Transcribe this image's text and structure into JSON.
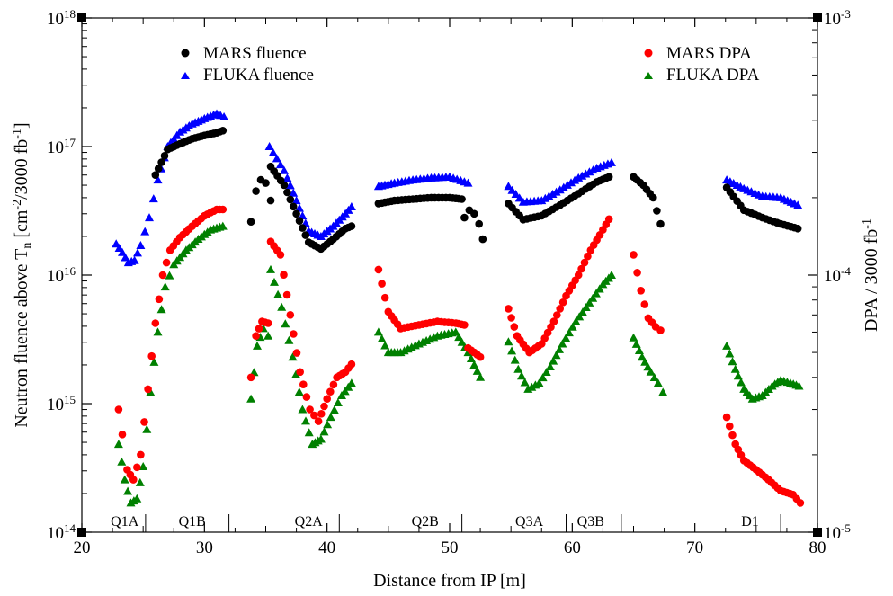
{
  "chart_data": {
    "type": "scatter",
    "xlabel": "Distance from IP [m]",
    "ylabel_left": "Neutron fluence above T_n [cm^-2/3000 fb^-1]",
    "ylabel_left_parts": {
      "main": "Neutron fluence above T",
      "sub": "n",
      "mid": " [cm",
      "sup1": "-2",
      "mid2": "/3000 fb",
      "sup2": "-1",
      "end": "]"
    },
    "ylabel_right": "DPA / 3000 fb^-1",
    "ylabel_right_parts": {
      "main": "DPA / 3000 fb",
      "sup": "-1"
    },
    "xlim": [
      20,
      80
    ],
    "ylim_left": [
      100000000000000.0,
      1e+18
    ],
    "ylim_right": [
      1e-05,
      0.001
    ],
    "yscale": "log",
    "grid": false,
    "xticks": [
      "20",
      "30",
      "40",
      "50",
      "60",
      "70",
      "80"
    ],
    "yticks_left": [
      {
        "base": "10",
        "exp": "14"
      },
      {
        "base": "10",
        "exp": "15"
      },
      {
        "base": "10",
        "exp": "16"
      },
      {
        "base": "10",
        "exp": "17"
      },
      {
        "base": "10",
        "exp": "18"
      }
    ],
    "yticks_right": [
      {
        "base": "10",
        "exp": "-5"
      },
      {
        "base": "10",
        "exp": "-4"
      },
      {
        "base": "10",
        "exp": "-3"
      }
    ],
    "legend_left": {
      "placement": "top-left",
      "entries": [
        "MARS fluence",
        "FLUKA fluence"
      ]
    },
    "legend_right": {
      "placement": "top-right",
      "entries": [
        "MARS DPA",
        "FLUKA DPA"
      ]
    },
    "magnet_labels": [
      {
        "label": "Q1A",
        "x": 23.5
      },
      {
        "label": "Q1B",
        "x": 29.0
      },
      {
        "label": "Q2A",
        "x": 38.5
      },
      {
        "label": "Q2B",
        "x": 48.0
      },
      {
        "label": "Q3A",
        "x": 56.5
      },
      {
        "label": "Q3B",
        "x": 61.5
      },
      {
        "label": "D1",
        "x": 74.5
      }
    ],
    "magnet_boundaries": [
      25.2,
      32.0,
      41.0,
      51.0,
      59.5,
      64.0,
      77.0
    ],
    "series": [
      {
        "name": "MARS fluence",
        "axis": "left",
        "marker": "circle",
        "color": "#000000",
        "segments": [
          {
            "x": [
              33.8,
              34.2,
              34.6,
              35.0,
              35.4
            ],
            "y": [
              2.6e+16,
              4.5e+16,
              5.5e+16,
              5.2e+16,
              3.8e+16
            ]
          },
          {
            "x": [
              35.4,
              36.5,
              37.5,
              38.5,
              39.5,
              40.5,
              41.5,
              42.0
            ],
            "y": [
              7e+16,
              5e+16,
              3e+16,
              1.8e+16,
              1.6e+16,
              1.9e+16,
              2.3e+16,
              2.4e+16
            ]
          },
          {
            "x": [
              44.2,
              45.5,
              47.0,
              48.5,
              50.0,
              51.0
            ],
            "y": [
              3.6e+16,
              3.8e+16,
              3.9e+16,
              4e+16,
              4e+16,
              3.9e+16
            ]
          },
          {
            "x": [
              51.2,
              51.6,
              52.0,
              52.4,
              52.7
            ],
            "y": [
              2.8e+16,
              3.2e+16,
              3e+16,
              2.5e+16,
              1.9e+16
            ]
          },
          {
            "x": [
              54.8,
              56.0,
              57.5,
              59.0,
              60.5,
              62.0,
              63.0
            ],
            "y": [
              3.6e+16,
              2.7e+16,
              2.9e+16,
              3.5e+16,
              4.3e+16,
              5.3e+16,
              5.8e+16
            ]
          },
          {
            "x": [
              65.0,
              65.8,
              66.6,
              67.2
            ],
            "y": [
              5.8e+16,
              5e+16,
              4e+16,
              2.5e+16
            ]
          },
          {
            "x": [
              72.6,
              74.0,
              75.5,
              77.0,
              78.4
            ],
            "y": [
              4.8e+16,
              3.2e+16,
              2.8e+16,
              2.5e+16,
              2.3e+16
            ]
          },
          {
            "x": [
              26.0,
              27.0,
              28.0,
              29.0,
              30.0,
              31.0,
              31.5
            ],
            "y": [
              6e+16,
              9.5e+16,
              1.05e+17,
              1.15e+17,
              1.22e+17,
              1.28e+17,
              1.33e+17
            ]
          }
        ]
      },
      {
        "name": "FLUKA fluence",
        "axis": "left",
        "marker": "triangle",
        "color": "#0000ff",
        "segments": [
          {
            "x": [
              22.8,
              23.3,
              23.8,
              24.3,
              24.8,
              25.5,
              26.2,
              27.0,
              28.0,
              29.0,
              30.0,
              31.0,
              31.6
            ],
            "y": [
              1.75e+16,
              1.5e+16,
              1.25e+16,
              1.3e+16,
              1.7e+16,
              2.8e+16,
              5.5e+16,
              1e+17,
              1.3e+17,
              1.5e+17,
              1.65e+17,
              1.8e+17,
              1.7e+17
            ]
          },
          {
            "x": [
              35.3,
              36.5,
              37.5,
              38.5,
              39.5,
              40.5,
              41.5,
              42.0
            ],
            "y": [
              1e+17,
              6.5e+16,
              3.8e+16,
              2.2e+16,
              2e+16,
              2.4e+16,
              3e+16,
              3.4e+16
            ]
          },
          {
            "x": [
              44.2,
              45.5,
              47.0,
              48.5,
              50.0,
              51.5
            ],
            "y": [
              4.9e+16,
              5.2e+16,
              5.5e+16,
              5.7e+16,
              5.8e+16,
              5.2e+16
            ]
          },
          {
            "x": [
              54.8,
              56.0,
              57.5,
              59.0,
              60.5,
              62.0,
              63.2
            ],
            "y": [
              4.9e+16,
              3.7e+16,
              3.8e+16,
              4.6e+16,
              5.7e+16,
              6.8e+16,
              7.5e+16
            ]
          },
          {
            "x": [
              72.6,
              74.0,
              75.5,
              77.0,
              78.4
            ],
            "y": [
              5.5e+16,
              4.7e+16,
              4.1e+16,
              4e+16,
              3.5e+16
            ]
          }
        ]
      },
      {
        "name": "MARS DPA",
        "axis": "right",
        "marker": "circle",
        "color": "#ff0000",
        "segments": [
          {
            "x": [
              23.0,
              23.3,
              23.7,
              24.2,
              24.8,
              25.4,
              26.0,
              26.6,
              27.2,
              28.0,
              29.0,
              30.0,
              31.0,
              31.5
            ],
            "y": [
              3e-05,
              2.4e-05,
              1.75e-05,
              1.6e-05,
              2e-05,
              3.6e-05,
              6.5e-05,
              0.0001,
              0.000125,
              0.00014,
              0.000155,
              0.00017,
              0.00018,
              0.00018
            ]
          },
          {
            "x": [
              33.8,
              34.2,
              34.7,
              35.2
            ],
            "y": [
              4e-05,
              5.8e-05,
              6.6e-05,
              6.5e-05
            ]
          },
          {
            "x": [
              35.4,
              36.2,
              37.0,
              37.8,
              38.6,
              39.3,
              40.0,
              40.8,
              41.5,
              42.0
            ],
            "y": [
              0.000135,
              0.00012,
              7e-05,
              4.2e-05,
              3e-05,
              2.7e-05,
              3.3e-05,
              4e-05,
              4.2e-05,
              4.5e-05
            ]
          },
          {
            "x": [
              44.2,
              45.0,
              46.0,
              47.5,
              49.0,
              50.5,
              51.2
            ],
            "y": [
              0.000105,
              7.2e-05,
              6.2e-05,
              6.4e-05,
              6.6e-05,
              6.5e-05,
              6.4e-05
            ]
          },
          {
            "x": [
              51.5,
              52.0,
              52.5
            ],
            "y": [
              5.2e-05,
              5e-05,
              4.8e-05
            ]
          },
          {
            "x": [
              54.8,
              55.5,
              56.5,
              57.5,
              58.5,
              59.5,
              60.5,
              61.5,
              62.5,
              63.0
            ],
            "y": [
              7.4e-05,
              5.8e-05,
              5e-05,
              5.4e-05,
              6.6e-05,
              8.3e-05,
              0.0001,
              0.000125,
              0.00015,
              0.000165
            ]
          },
          {
            "x": [
              65.0,
              65.6,
              66.2,
              66.8,
              67.2
            ],
            "y": [
              0.00012,
              8.7e-05,
              6.8e-05,
              6.3e-05,
              6.1e-05
            ]
          },
          {
            "x": [
              72.6,
              73.3,
              74.0,
              75.0,
              76.0,
              77.0,
              78.0,
              78.6
            ],
            "y": [
              2.8e-05,
              2.2e-05,
              1.9e-05,
              1.75e-05,
              1.6e-05,
              1.45e-05,
              1.4e-05,
              1.3e-05
            ]
          }
        ]
      },
      {
        "name": "FLUKA DPA",
        "axis": "right",
        "marker": "triangle",
        "color": "#008000",
        "segments": [
          {
            "x": [
              23.0,
              23.5,
              24.0,
              24.5,
              25.0,
              25.6,
              26.2,
              26.8,
              27.5,
              28.5,
              29.5,
              30.5,
              31.5
            ],
            "y": [
              2.2e-05,
              1.6e-05,
              1.3e-05,
              1.35e-05,
              1.8e-05,
              3.5e-05,
              6e-05,
              9e-05,
              0.00011,
              0.000125,
              0.000138,
              0.00015,
              0.000155
            ]
          },
          {
            "x": [
              33.8,
              34.3,
              34.8,
              35.2
            ],
            "y": [
              3.3e-05,
              5.3e-05,
              6.2e-05,
              5.8e-05
            ]
          },
          {
            "x": [
              35.4,
              36.3,
              37.2,
              38.0,
              38.8,
              39.5,
              40.3,
              41.2,
              42.0
            ],
            "y": [
              0.000105,
              7.5e-05,
              4.8e-05,
              3e-05,
              2.2e-05,
              2.3e-05,
              2.8e-05,
              3.4e-05,
              3.8e-05
            ]
          },
          {
            "x": [
              44.2,
              45.0,
              46.0,
              47.5,
              49.0,
              50.5,
              51.5,
              52.5
            ],
            "y": [
              6e-05,
              5e-05,
              5e-05,
              5.4e-05,
              5.8e-05,
              6e-05,
              5e-05,
              4e-05
            ]
          },
          {
            "x": [
              54.8,
              55.6,
              56.4,
              57.3,
              58.2,
              59.2,
              60.3,
              61.4,
              62.5,
              63.2
            ],
            "y": [
              5.5e-05,
              4.3e-05,
              3.6e-05,
              3.8e-05,
              4.4e-05,
              5.4e-05,
              6.6e-05,
              7.8e-05,
              9.2e-05,
              0.0001
            ]
          },
          {
            "x": [
              65.0,
              65.7,
              66.4,
              67.0,
              67.4
            ],
            "y": [
              5.7e-05,
              4.8e-05,
              4.2e-05,
              3.8e-05,
              3.5e-05
            ]
          },
          {
            "x": [
              72.6,
              73.3,
              74.0,
              74.7,
              75.5,
              76.3,
              77.0,
              77.8,
              78.5
            ],
            "y": [
              5.3e-05,
              4.3e-05,
              3.6e-05,
              3.3e-05,
              3.4e-05,
              3.7e-05,
              3.9e-05,
              3.8e-05,
              3.7e-05
            ]
          }
        ]
      }
    ]
  }
}
